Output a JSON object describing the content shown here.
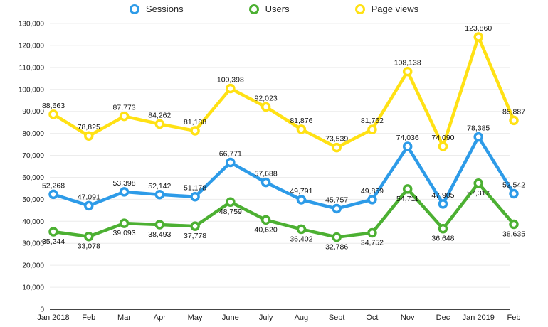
{
  "chart_data": {
    "type": "line",
    "categories": [
      "Jan 2018",
      "Feb",
      "Mar",
      "Apr",
      "May",
      "June",
      "July",
      "Aug",
      "Sept",
      "Oct",
      "Nov",
      "Dec",
      "Jan 2019",
      "Feb"
    ],
    "series": [
      {
        "name": "Sessions",
        "color": "#2d9be8",
        "label_position": "above",
        "values": [
          52268,
          47091,
          53398,
          52142,
          51178,
          66771,
          57688,
          49791,
          45757,
          49859,
          74036,
          47905,
          78385,
          52542
        ]
      },
      {
        "name": "Users",
        "color": "#4cb032",
        "label_position": "below",
        "values": [
          35244,
          33078,
          39093,
          38493,
          37778,
          48759,
          40620,
          36402,
          32786,
          34752,
          54711,
          36648,
          57317,
          38635
        ]
      },
      {
        "name": "Page views",
        "color": "#ffe114",
        "label_position": "above",
        "values": [
          88663,
          78825,
          87773,
          84262,
          81188,
          100398,
          92023,
          81876,
          73539,
          81762,
          108138,
          74090,
          123860,
          85887
        ]
      }
    ],
    "title": "",
    "xlabel": "",
    "ylabel": "",
    "ylim": [
      0,
      130000
    ],
    "ytick_step": 10000,
    "grid": "horizontal",
    "legend_position": "top",
    "value_labels": true,
    "axis_color": "#454545",
    "gridline_color": "#ececec"
  }
}
